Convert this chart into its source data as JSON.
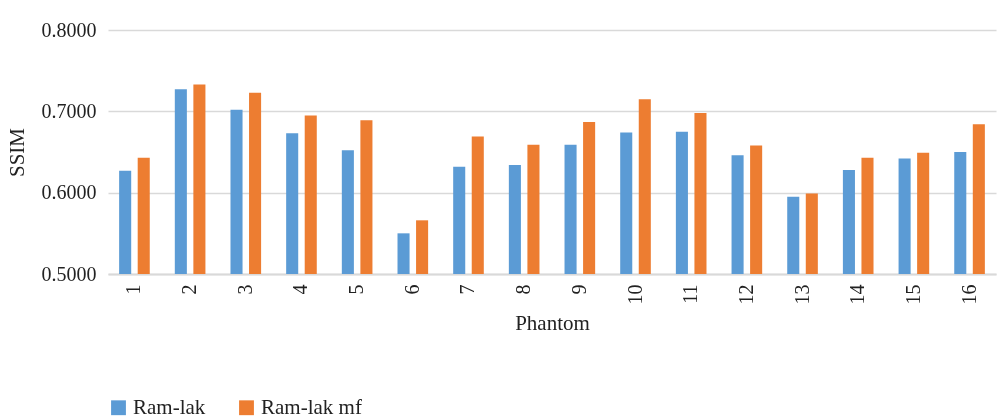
{
  "chart_data": {
    "type": "bar",
    "xlabel": "Phantom",
    "ylabel": "SSIM",
    "categories": [
      "1",
      "2",
      "3",
      "4",
      "5",
      "6",
      "7",
      "8",
      "9",
      "10",
      "11",
      "12",
      "13",
      "14",
      "15",
      "16"
    ],
    "series": [
      {
        "name": "Ram-lak",
        "color": "#5b9bd5",
        "values": [
          0.627,
          0.727,
          0.702,
          0.673,
          0.652,
          0.55,
          0.632,
          0.634,
          0.659,
          0.674,
          0.675,
          0.646,
          0.595,
          0.628,
          0.642,
          0.65
        ]
      },
      {
        "name": "Ram-lak  mf",
        "color": "#ed7d31",
        "values": [
          0.643,
          0.733,
          0.723,
          0.695,
          0.689,
          0.566,
          0.669,
          0.659,
          0.687,
          0.715,
          0.698,
          0.658,
          0.599,
          0.643,
          0.649,
          0.684
        ]
      }
    ],
    "ylim": [
      0.5,
      0.8
    ],
    "yticks": [
      {
        "value": 0.5,
        "label": "0.5000"
      },
      {
        "value": 0.6,
        "label": "0.6000"
      },
      {
        "value": 0.7,
        "label": "0.7000"
      },
      {
        "value": 0.8,
        "label": "0.8000"
      }
    ],
    "grid": "y",
    "legend": "bottom"
  }
}
